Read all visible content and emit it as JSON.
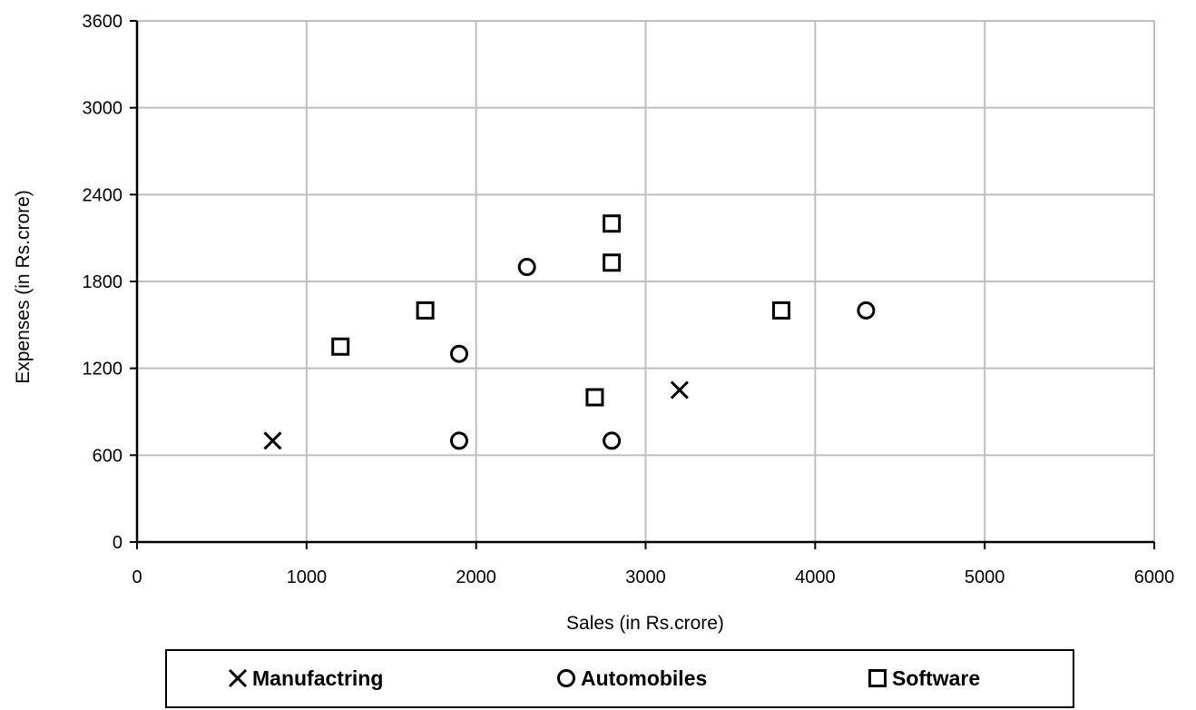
{
  "chart_data": {
    "type": "scatter",
    "title": "",
    "xlabel": "Sales (in Rs.crore)",
    "ylabel": "Expenses (in Rs.crore)",
    "xlim": [
      0,
      6000
    ],
    "ylim": [
      0,
      3600
    ],
    "xticks": [
      0,
      1000,
      2000,
      3000,
      4000,
      5000,
      6000
    ],
    "yticks": [
      0,
      600,
      1200,
      1800,
      2400,
      3000,
      3600
    ],
    "grid": true,
    "legend_position": "bottom",
    "series": [
      {
        "name": "Manufactring",
        "marker": "x",
        "points": [
          [
            800,
            700
          ],
          [
            3200,
            1050
          ]
        ]
      },
      {
        "name": "Automobiles",
        "marker": "circle",
        "points": [
          [
            1900,
            700
          ],
          [
            1900,
            1300
          ],
          [
            2300,
            1900
          ],
          [
            2800,
            700
          ],
          [
            4300,
            1600
          ]
        ]
      },
      {
        "name": "Software",
        "marker": "square",
        "points": [
          [
            1200,
            1350
          ],
          [
            1700,
            1600
          ],
          [
            2700,
            1000
          ],
          [
            2800,
            1930
          ],
          [
            2800,
            2200
          ],
          [
            3800,
            1600
          ]
        ]
      }
    ]
  },
  "colors": {
    "gridline": "#bfbfbf",
    "axis": "#000000",
    "marker": "#000000"
  }
}
